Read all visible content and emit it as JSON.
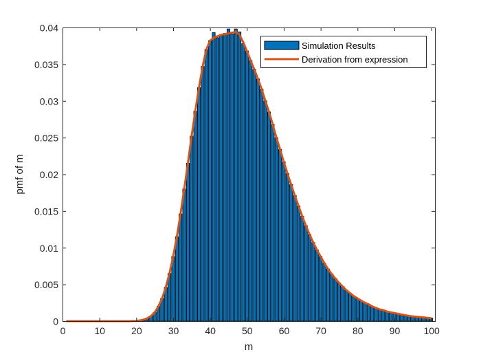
{
  "chart_data": {
    "type": "bar",
    "xlabel": "m",
    "ylabel": "pmf of m",
    "xlim": [
      0,
      101
    ],
    "ylim": [
      0,
      0.04
    ],
    "xticks": [
      0,
      10,
      20,
      30,
      40,
      50,
      60,
      70,
      80,
      90,
      100
    ],
    "yticks": [
      0,
      0.005,
      0.01,
      0.015,
      0.02,
      0.025,
      0.03,
      0.035,
      0.04
    ],
    "ytick_labels": [
      "0",
      "0.005",
      "0.01",
      "0.015",
      "0.02",
      "0.025",
      "0.03",
      "0.035",
      "0.04"
    ],
    "grid": false,
    "legend_position": "top-right",
    "series": [
      {
        "name": "Simulation Results",
        "type": "bar",
        "color": "#0072BD",
        "x": [
          1,
          2,
          3,
          4,
          5,
          6,
          7,
          8,
          9,
          10,
          11,
          12,
          13,
          14,
          15,
          16,
          17,
          18,
          19,
          20,
          21,
          22,
          23,
          24,
          25,
          26,
          27,
          28,
          29,
          30,
          31,
          32,
          33,
          34,
          35,
          36,
          37,
          38,
          39,
          40,
          41,
          42,
          43,
          44,
          45,
          46,
          47,
          48,
          49,
          50,
          51,
          52,
          53,
          54,
          55,
          56,
          57,
          58,
          59,
          60,
          61,
          62,
          63,
          64,
          65,
          66,
          67,
          68,
          69,
          70,
          71,
          72,
          73,
          74,
          75,
          76,
          77,
          78,
          79,
          80,
          81,
          82,
          83,
          84,
          85,
          86,
          87,
          88,
          89,
          90,
          91,
          92,
          93,
          94,
          95,
          96,
          97,
          98,
          99,
          100
        ],
        "values": [
          0,
          0,
          0,
          0,
          0,
          0,
          0,
          0,
          0,
          0,
          0,
          0,
          0,
          0,
          0,
          0,
          0,
          0,
          2e-05,
          4e-05,
          0.0001,
          0.0002,
          0.0004,
          0.0007,
          0.0012,
          0.002,
          0.0031,
          0.0046,
          0.0065,
          0.0088,
          0.0115,
          0.0146,
          0.018,
          0.0215,
          0.0252,
          0.0286,
          0.0318,
          0.0347,
          0.037,
          0.0382,
          0.0393,
          0.0386,
          0.0389,
          0.0392,
          0.0398,
          0.0391,
          0.0398,
          0.0394,
          0.0378,
          0.0368,
          0.0355,
          0.0343,
          0.033,
          0.0316,
          0.03,
          0.0285,
          0.0268,
          0.025,
          0.0234,
          0.0217,
          0.0201,
          0.0186,
          0.0171,
          0.0157,
          0.0143,
          0.013,
          0.0118,
          0.0107,
          0.0097,
          0.0088,
          0.0079,
          0.0071,
          0.0064,
          0.0058,
          0.0052,
          0.0047,
          0.0042,
          0.0038,
          0.0034,
          0.0031,
          0.0028,
          0.0025,
          0.0023,
          0.002,
          0.0018,
          0.0016,
          0.0015,
          0.0013,
          0.0012,
          0.0011,
          0.001,
          0.0009,
          0.0008,
          0.0007,
          0.00065,
          0.0006,
          0.00055,
          0.0005,
          0.00045,
          0.0004
        ]
      },
      {
        "name": "Derivation from expression",
        "type": "line",
        "color": "#D95319",
        "x": [
          1,
          2,
          3,
          4,
          5,
          6,
          7,
          8,
          9,
          10,
          11,
          12,
          13,
          14,
          15,
          16,
          17,
          18,
          19,
          20,
          21,
          22,
          23,
          24,
          25,
          26,
          27,
          28,
          29,
          30,
          31,
          32,
          33,
          34,
          35,
          36,
          37,
          38,
          39,
          40,
          41,
          42,
          43,
          44,
          45,
          46,
          47,
          48,
          49,
          50,
          51,
          52,
          53,
          54,
          55,
          56,
          57,
          58,
          59,
          60,
          61,
          62,
          63,
          64,
          65,
          66,
          67,
          68,
          69,
          70,
          71,
          72,
          73,
          74,
          75,
          76,
          77,
          78,
          79,
          80,
          81,
          82,
          83,
          84,
          85,
          86,
          87,
          88,
          89,
          90,
          91,
          92,
          93,
          94,
          95,
          96,
          97,
          98,
          99,
          100
        ],
        "values": [
          0,
          0,
          0,
          0,
          0,
          0,
          0,
          0,
          0,
          0,
          0,
          0,
          0,
          0,
          0,
          0,
          0,
          0,
          2e-05,
          4e-05,
          0.0001,
          0.0002,
          0.0004,
          0.0007,
          0.0012,
          0.002,
          0.0031,
          0.0046,
          0.0065,
          0.0088,
          0.0115,
          0.0146,
          0.018,
          0.0215,
          0.0252,
          0.0286,
          0.0318,
          0.0347,
          0.037,
          0.0382,
          0.0386,
          0.0388,
          0.039,
          0.0391,
          0.0392,
          0.0393,
          0.0394,
          0.039,
          0.038,
          0.0368,
          0.0355,
          0.0343,
          0.033,
          0.0316,
          0.03,
          0.0285,
          0.0268,
          0.025,
          0.0234,
          0.0217,
          0.0201,
          0.0186,
          0.0171,
          0.0157,
          0.0143,
          0.013,
          0.0118,
          0.0107,
          0.0097,
          0.0088,
          0.0079,
          0.0071,
          0.0064,
          0.0058,
          0.0052,
          0.0047,
          0.0042,
          0.0038,
          0.0034,
          0.0031,
          0.0028,
          0.0025,
          0.0023,
          0.002,
          0.0018,
          0.0016,
          0.0015,
          0.0013,
          0.0012,
          0.0011,
          0.001,
          0.0009,
          0.0008,
          0.0007,
          0.00065,
          0.0006,
          0.00055,
          0.0005,
          0.00045,
          0.0004
        ]
      }
    ]
  }
}
